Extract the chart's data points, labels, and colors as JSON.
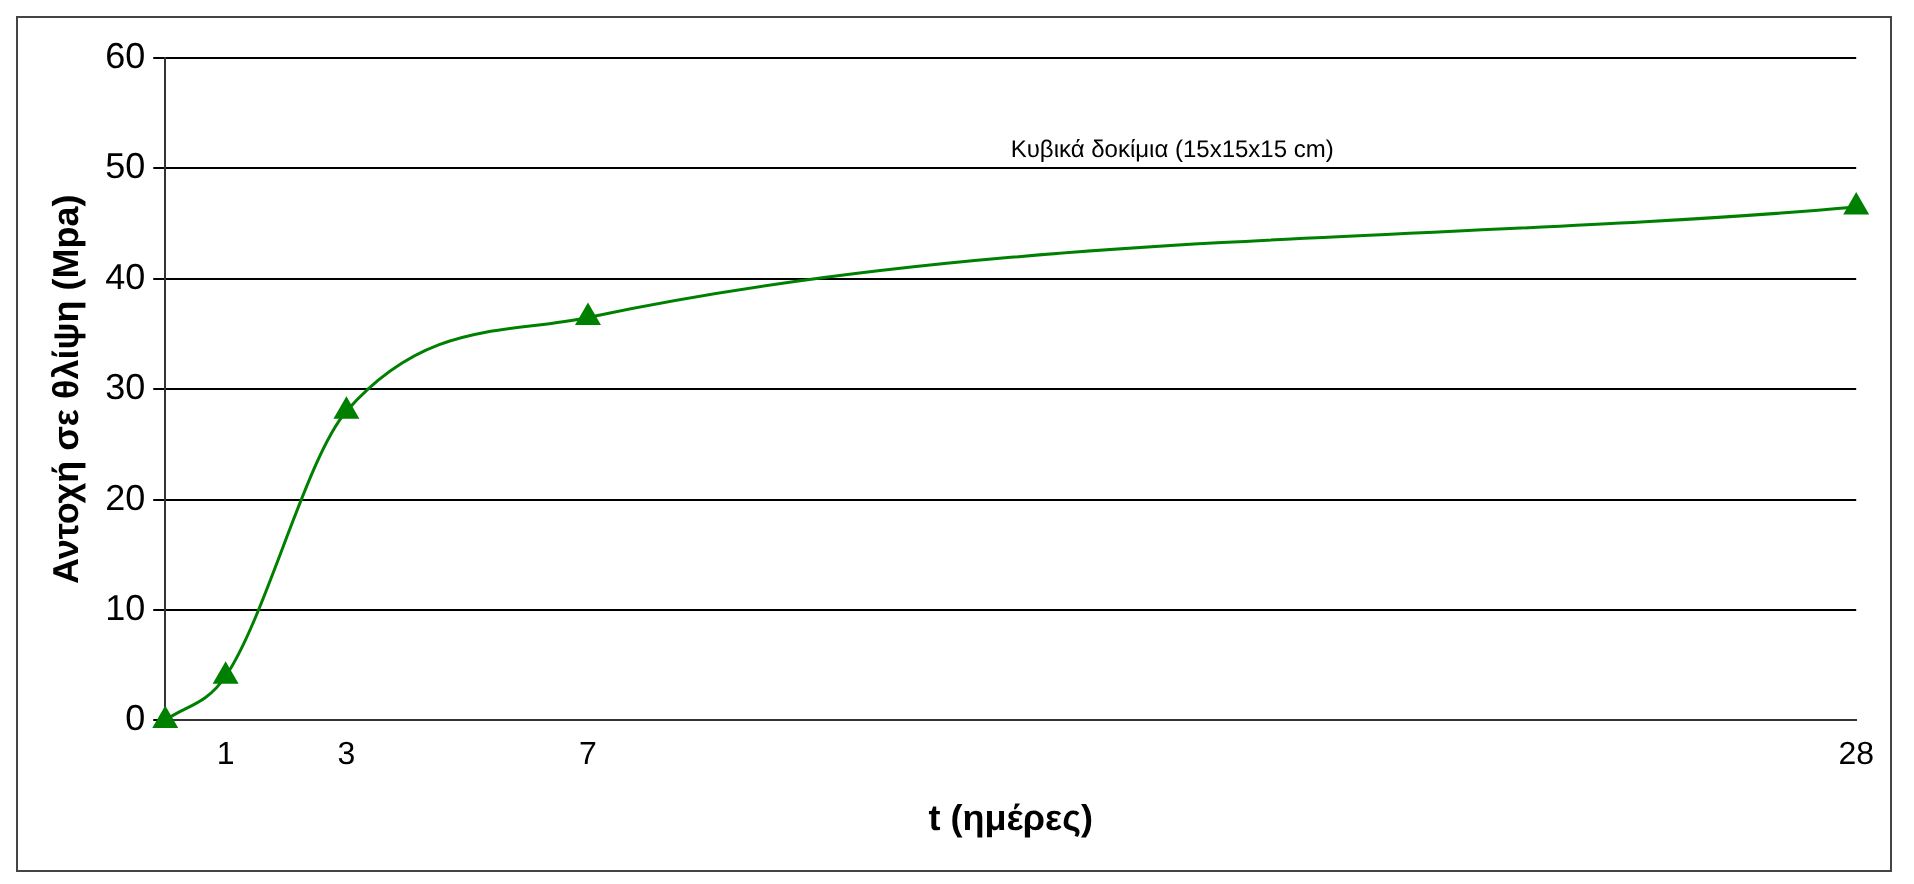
{
  "chart_data": {
    "type": "line",
    "xlabel": "t (ημέρες)",
    "ylabel": "Αντοχή σε θλίψη (Mpa)",
    "x": [
      0,
      1,
      3,
      7,
      28
    ],
    "series": [
      {
        "color": "#008000",
        "values": [
          0,
          4,
          28,
          36.5,
          46.5
        ]
      }
    ],
    "xlim": [
      0,
      28
    ],
    "xticks": [
      1,
      3,
      7,
      28
    ],
    "ylim": [
      0,
      60
    ],
    "yticks": [
      0,
      10,
      20,
      30,
      40,
      50,
      60
    ],
    "grid": "y",
    "legend": false,
    "marker": "triangle",
    "line_style": "solid",
    "annotations": [
      "Κυβικά δοκίμια (15x15x15 cm)"
    ]
  }
}
